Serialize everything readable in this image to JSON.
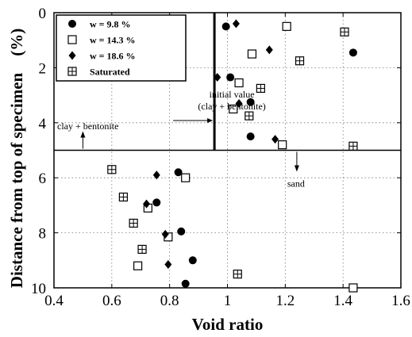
{
  "chart_data": {
    "type": "scatter",
    "xlabel": "Void ratio",
    "ylabel": "Distance from top of specimen　(%)",
    "xlim": [
      0.4,
      1.6
    ],
    "ylim": [
      0,
      10
    ],
    "y_inverted": true,
    "x_axis_position": "bottom",
    "y_axis_position": "left",
    "x_ticks": [
      0.4,
      0.6,
      0.8,
      1.0,
      1.2,
      1.4,
      1.6
    ],
    "x_tick_labels": [
      "0.4",
      "0.6",
      "0.8",
      "1",
      "1.2",
      "1.4",
      "1.6"
    ],
    "y_ticks": [
      0,
      2,
      4,
      6,
      8,
      10
    ],
    "y_tick_labels": [
      "0",
      "2",
      "4",
      "6",
      "8",
      "10"
    ],
    "grid": "dotted",
    "legend_position": "top-left",
    "boundary_depth": 5.0,
    "initial_void_ratio": 0.955,
    "annotations": {
      "initial_value_line1": "initial value",
      "initial_value_line2": "(clay + bentonite)",
      "clay_bentonite": "clay + bentonite",
      "sand": "sand"
    },
    "series": [
      {
        "name": "w = 9.8 %",
        "marker": "filled-circle",
        "points": [
          [
            0.995,
            0.5
          ],
          [
            1.435,
            1.45
          ],
          [
            1.01,
            2.35
          ],
          [
            1.08,
            3.25
          ],
          [
            1.08,
            4.5
          ],
          [
            0.83,
            5.8
          ],
          [
            0.755,
            6.9
          ],
          [
            0.84,
            7.95
          ],
          [
            0.88,
            9.0
          ],
          [
            0.855,
            9.85
          ]
        ]
      },
      {
        "name": "w = 14.3 %",
        "marker": "open-square",
        "points": [
          [
            1.205,
            0.5
          ],
          [
            1.085,
            1.5
          ],
          [
            1.04,
            2.55
          ],
          [
            1.02,
            3.5
          ],
          [
            1.19,
            4.8
          ],
          [
            0.855,
            6.0
          ],
          [
            0.725,
            7.1
          ],
          [
            0.795,
            8.15
          ],
          [
            0.69,
            9.2
          ],
          [
            1.435,
            10.0
          ]
        ]
      },
      {
        "name": "w = 18.6 %",
        "marker": "filled-diamond",
        "points": [
          [
            1.03,
            0.4
          ],
          [
            1.145,
            1.35
          ],
          [
            0.965,
            2.35
          ],
          [
            1.04,
            3.3
          ],
          [
            1.165,
            4.6
          ],
          [
            0.755,
            5.9
          ],
          [
            0.72,
            6.95
          ],
          [
            0.785,
            8.05
          ],
          [
            0.795,
            9.15
          ]
        ]
      },
      {
        "name": "Saturated",
        "marker": "grid-square",
        "points": [
          [
            1.405,
            0.7
          ],
          [
            1.25,
            1.75
          ],
          [
            1.115,
            2.75
          ],
          [
            1.075,
            3.75
          ],
          [
            1.435,
            4.85
          ],
          [
            0.6,
            5.7
          ],
          [
            0.64,
            6.7
          ],
          [
            0.675,
            7.65
          ],
          [
            0.705,
            8.6
          ],
          [
            1.035,
            9.5
          ]
        ]
      }
    ]
  }
}
